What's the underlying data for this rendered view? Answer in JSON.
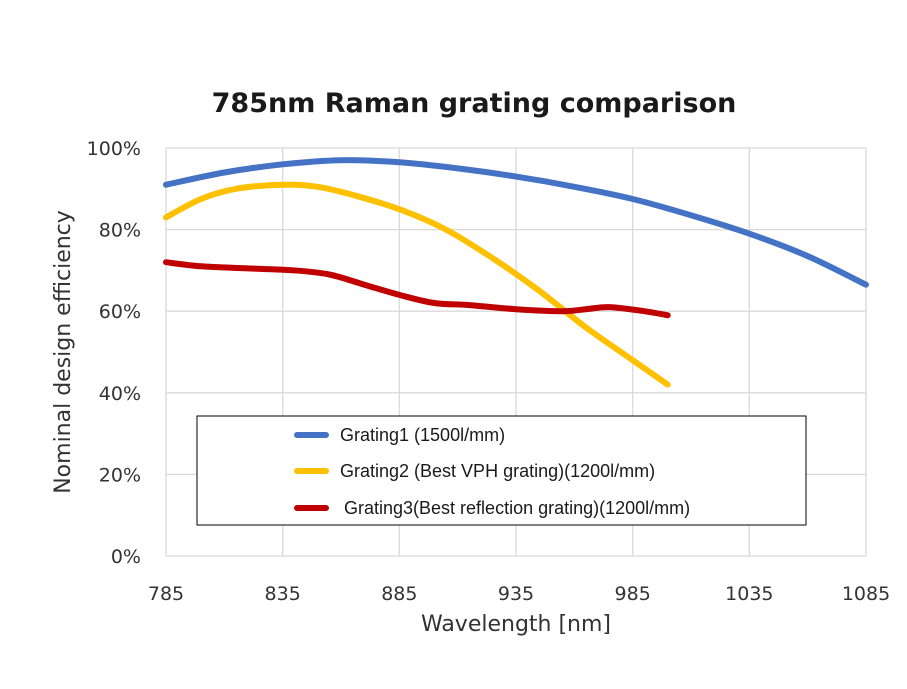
{
  "chart_data": {
    "type": "line",
    "title": "785nm Raman grating comparison",
    "xlabel": "Wavelength [nm]",
    "ylabel": "Nominal design efficiency",
    "xlim": [
      785,
      1085
    ],
    "ylim": [
      0,
      100
    ],
    "xticks": [
      785,
      835,
      885,
      935,
      985,
      1035,
      1085
    ],
    "yticks": [
      0,
      20,
      40,
      60,
      80,
      100
    ],
    "ytick_labels": [
      "0%",
      "20%",
      "40%",
      "60%",
      "80%",
      "100%"
    ],
    "grid": true,
    "legend_position": "bottom-center-inside",
    "series": [
      {
        "name": "Grating1 (1500l/mm)",
        "color": "#4472C4",
        "x": [
          785,
          810,
          835,
          860,
          885,
          910,
          935,
          960,
          985,
          1010,
          1035,
          1060,
          1085
        ],
        "y": [
          91,
          94,
          96,
          97,
          96.5,
          95,
          93,
          90.5,
          87.5,
          83.5,
          79,
          73.5,
          66.5
        ]
      },
      {
        "name": "Grating2 (Best VPH grating)(1200l/mm)",
        "color": "#FFC000",
        "x": [
          785,
          800,
          815,
          835,
          850,
          865,
          885,
          905,
          925,
          945,
          965,
          985,
          1000
        ],
        "y": [
          83,
          87.5,
          90,
          91,
          90.5,
          88.5,
          85,
          80,
          73,
          65,
          56,
          48,
          42
        ]
      },
      {
        "name": "Grating3(Best reflection grating)(1200l/mm)",
        "color": "#C00000",
        "x": [
          785,
          800,
          820,
          840,
          855,
          870,
          885,
          900,
          915,
          935,
          955,
          965,
          975,
          990,
          1000
        ],
        "y": [
          72,
          71,
          70.5,
          70,
          69,
          66.5,
          64,
          62,
          61.5,
          60.5,
          60,
          60.5,
          61,
          60,
          59
        ]
      }
    ]
  }
}
